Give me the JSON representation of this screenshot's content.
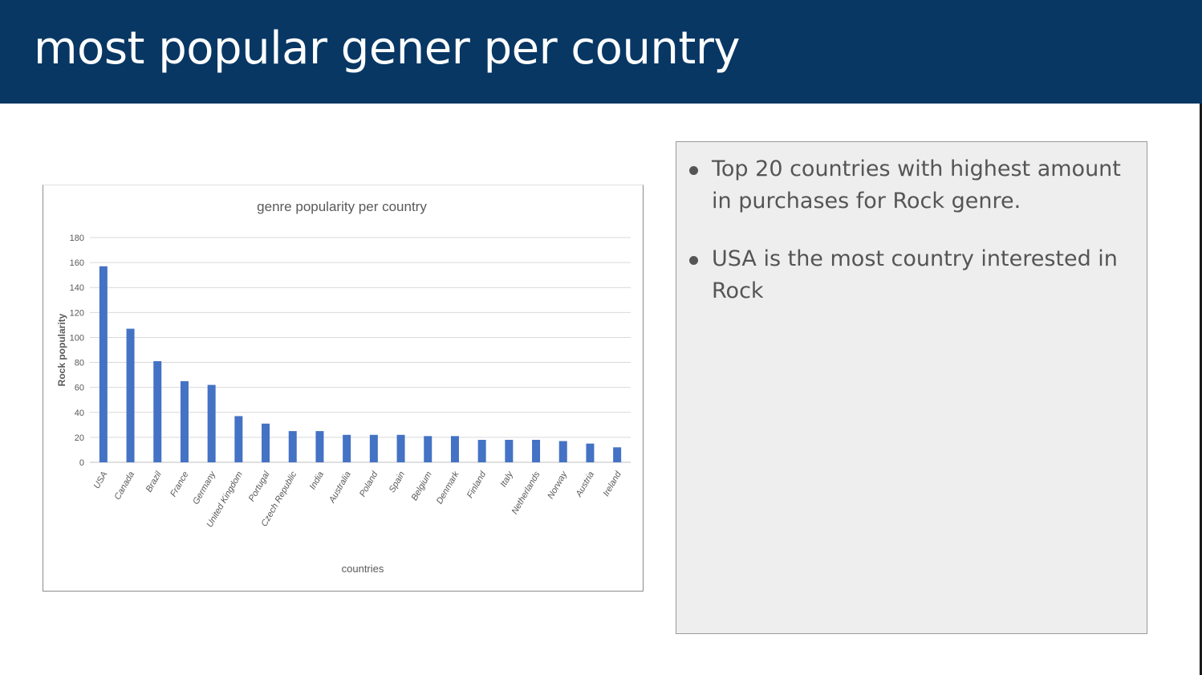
{
  "slide": {
    "title": "most popular gener per country",
    "bullets": [
      "Top 20 countries  with highest amount in purchases for Rock genre.",
      "USA is the most country interested in Rock"
    ]
  },
  "colors": {
    "header": "#083764",
    "bar": "#4472c4",
    "note_box": "#eeeeee"
  },
  "chart_data": {
    "type": "bar",
    "title": "genre popularity per country",
    "xlabel": "countries",
    "ylabel": "Rock popularity",
    "ylim": [
      0,
      180
    ],
    "yticks": [
      0,
      20,
      40,
      60,
      80,
      100,
      120,
      140,
      160,
      180
    ],
    "grid": true,
    "legend": "none",
    "categories": [
      "USA",
      "Canada",
      "Brazil",
      "France",
      "Germany",
      "United Kingdom",
      "Portugal",
      "Czech Republic",
      "India",
      "Australia",
      "Poland",
      "Spain",
      "Belgium",
      "Denmark",
      "Finland",
      "Italy",
      "Netherlands",
      "Norway",
      "Austria",
      "Ireland"
    ],
    "values": [
      157,
      107,
      81,
      65,
      62,
      37,
      31,
      25,
      25,
      22,
      22,
      22,
      21,
      21,
      18,
      18,
      18,
      17,
      15,
      12
    ]
  }
}
